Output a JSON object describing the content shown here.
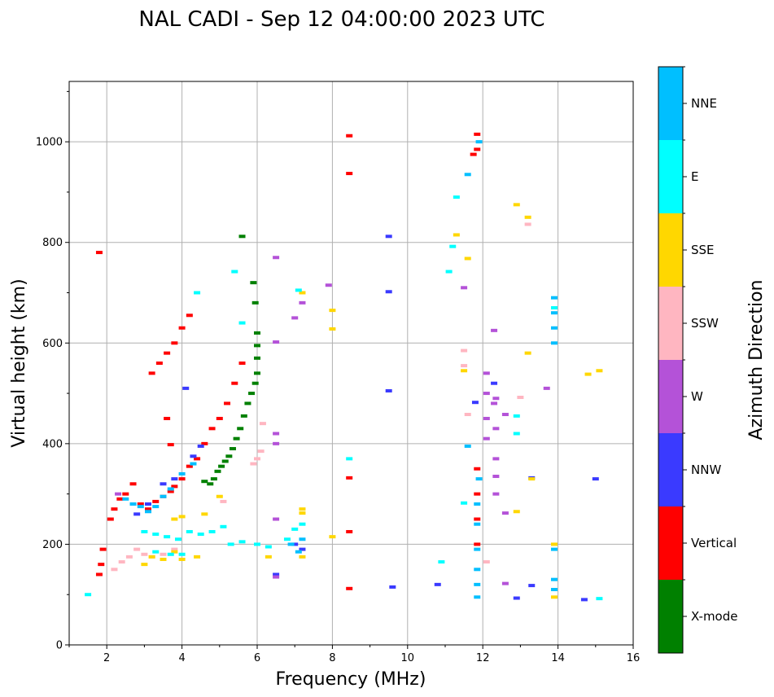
{
  "chart_data": {
    "type": "scatter",
    "title": "NAL CADI - Sep 12 04:00:00 2023 UTC",
    "xlabel": "Frequency (MHz)",
    "ylabel": "Virtual height (km)",
    "xlim": [
      1,
      16
    ],
    "ylim": [
      0,
      1120
    ],
    "xticks": [
      2,
      4,
      6,
      8,
      10,
      12,
      14,
      16
    ],
    "yticks": [
      0,
      200,
      400,
      600,
      800,
      1000
    ],
    "grid": true,
    "colorbar": {
      "label": "Azimuth Direction",
      "categories": [
        {
          "name": "X-mode",
          "color": "#008000"
        },
        {
          "name": "Vertical",
          "color": "#ff0000"
        },
        {
          "name": "NNW",
          "color": "#3a3aff"
        },
        {
          "name": "W",
          "color": "#b452d8"
        },
        {
          "name": "SSW",
          "color": "#ffb6c1"
        },
        {
          "name": "SSE",
          "color": "#ffd700"
        },
        {
          "name": "E",
          "color": "#00ffff"
        },
        {
          "name": "NNE",
          "color": "#00bfff"
        }
      ]
    },
    "series": [
      {
        "name": "X-mode",
        "points": [
          [
            4.85,
            330
          ],
          [
            4.95,
            345
          ],
          [
            5.05,
            355
          ],
          [
            5.15,
            365
          ],
          [
            5.25,
            375
          ],
          [
            5.35,
            390
          ],
          [
            5.45,
            410
          ],
          [
            5.55,
            430
          ],
          [
            5.65,
            455
          ],
          [
            5.75,
            480
          ],
          [
            5.85,
            500
          ],
          [
            5.95,
            520
          ],
          [
            6.0,
            540
          ],
          [
            6.0,
            570
          ],
          [
            6.0,
            595
          ],
          [
            6.0,
            620
          ],
          [
            5.95,
            680
          ],
          [
            5.9,
            720
          ],
          [
            5.6,
            812
          ],
          [
            4.6,
            325
          ],
          [
            4.75,
            320
          ]
        ]
      },
      {
        "name": "Vertical",
        "points": [
          [
            1.8,
            140
          ],
          [
            1.85,
            160
          ],
          [
            1.9,
            190
          ],
          [
            2.1,
            250
          ],
          [
            2.2,
            270
          ],
          [
            2.35,
            290
          ],
          [
            2.5,
            300
          ],
          [
            2.7,
            320
          ],
          [
            2.9,
            280
          ],
          [
            3.1,
            270
          ],
          [
            3.3,
            285
          ],
          [
            3.5,
            295
          ],
          [
            3.7,
            305
          ],
          [
            3.8,
            315
          ],
          [
            4.0,
            330
          ],
          [
            4.2,
            355
          ],
          [
            4.4,
            370
          ],
          [
            4.6,
            400
          ],
          [
            4.8,
            430
          ],
          [
            5.0,
            450
          ],
          [
            5.2,
            480
          ],
          [
            5.4,
            520
          ],
          [
            5.6,
            560
          ],
          [
            3.2,
            540
          ],
          [
            3.4,
            560
          ],
          [
            3.6,
            580
          ],
          [
            3.8,
            600
          ],
          [
            4.0,
            630
          ],
          [
            4.2,
            655
          ],
          [
            3.6,
            450
          ],
          [
            3.7,
            398
          ],
          [
            1.8,
            780
          ],
          [
            8.45,
            1012
          ],
          [
            8.45,
            937
          ],
          [
            8.45,
            332
          ],
          [
            8.45,
            225
          ],
          [
            8.45,
            112
          ],
          [
            11.85,
            1015
          ],
          [
            11.85,
            985
          ],
          [
            11.75,
            975
          ],
          [
            11.85,
            350
          ],
          [
            11.85,
            300
          ],
          [
            11.85,
            250
          ],
          [
            11.85,
            200
          ]
        ]
      },
      {
        "name": "NNW",
        "points": [
          [
            4.1,
            510
          ],
          [
            9.5,
            812
          ],
          [
            9.5,
            702
          ],
          [
            9.5,
            505
          ],
          [
            9.6,
            115
          ],
          [
            10.8,
            120
          ],
          [
            11.8,
            482
          ],
          [
            12.3,
            520
          ],
          [
            13.3,
            332
          ],
          [
            13.3,
            118
          ],
          [
            12.9,
            93
          ],
          [
            14.7,
            90
          ],
          [
            15.0,
            330
          ],
          [
            7.0,
            200
          ],
          [
            7.2,
            190
          ],
          [
            2.8,
            260
          ],
          [
            3.1,
            280
          ],
          [
            3.5,
            320
          ],
          [
            3.8,
            330
          ],
          [
            4.3,
            375
          ],
          [
            4.5,
            395
          ],
          [
            6.5,
            140
          ]
        ]
      },
      {
        "name": "W",
        "points": [
          [
            6.5,
            770
          ],
          [
            6.5,
            602
          ],
          [
            6.5,
            420
          ],
          [
            6.5,
            400
          ],
          [
            7.0,
            650
          ],
          [
            7.2,
            680
          ],
          [
            7.9,
            715
          ],
          [
            11.5,
            710
          ],
          [
            12.1,
            540
          ],
          [
            12.1,
            500
          ],
          [
            12.1,
            450
          ],
          [
            12.1,
            410
          ],
          [
            12.3,
            480
          ],
          [
            12.35,
            490
          ],
          [
            12.35,
            430
          ],
          [
            12.35,
            370
          ],
          [
            12.35,
            335
          ],
          [
            12.35,
            300
          ],
          [
            12.3,
            625
          ],
          [
            12.6,
            458
          ],
          [
            12.6,
            262
          ],
          [
            12.6,
            122
          ],
          [
            13.7,
            510
          ],
          [
            6.5,
            250
          ],
          [
            6.5,
            135
          ],
          [
            2.3,
            300
          ]
        ]
      },
      {
        "name": "SSW",
        "points": [
          [
            2.2,
            150
          ],
          [
            2.4,
            165
          ],
          [
            2.6,
            175
          ],
          [
            2.8,
            190
          ],
          [
            3.0,
            180
          ],
          [
            3.2,
            175
          ],
          [
            3.5,
            180
          ],
          [
            3.8,
            190
          ],
          [
            5.1,
            285
          ],
          [
            5.9,
            360
          ],
          [
            6.0,
            370
          ],
          [
            6.1,
            385
          ],
          [
            6.15,
            440
          ],
          [
            11.5,
            585
          ],
          [
            11.5,
            555
          ],
          [
            11.6,
            458
          ],
          [
            13.0,
            492
          ],
          [
            13.2,
            836
          ],
          [
            12.1,
            165
          ]
        ]
      },
      {
        "name": "SSE",
        "points": [
          [
            3.0,
            160
          ],
          [
            3.2,
            175
          ],
          [
            3.5,
            170
          ],
          [
            3.8,
            185
          ],
          [
            4.0,
            170
          ],
          [
            4.4,
            175
          ],
          [
            3.8,
            250
          ],
          [
            4.0,
            255
          ],
          [
            4.6,
            260
          ],
          [
            5.0,
            295
          ],
          [
            7.2,
            270
          ],
          [
            7.2,
            262
          ],
          [
            6.3,
            175
          ],
          [
            7.2,
            175
          ],
          [
            8.0,
            215
          ],
          [
            8.0,
            628
          ],
          [
            8.0,
            665
          ],
          [
            7.2,
            700
          ],
          [
            11.3,
            815
          ],
          [
            11.6,
            768
          ],
          [
            11.5,
            545
          ],
          [
            12.9,
            875
          ],
          [
            13.2,
            850
          ],
          [
            13.2,
            580
          ],
          [
            12.9,
            265
          ],
          [
            13.3,
            330
          ],
          [
            14.8,
            538
          ],
          [
            15.1,
            545
          ],
          [
            13.9,
            200
          ],
          [
            13.9,
            95
          ]
        ]
      },
      {
        "name": "E",
        "points": [
          [
            3.0,
            225
          ],
          [
            3.3,
            220
          ],
          [
            3.6,
            215
          ],
          [
            3.9,
            210
          ],
          [
            4.2,
            225
          ],
          [
            4.5,
            220
          ],
          [
            4.8,
            225
          ],
          [
            5.1,
            235
          ],
          [
            3.3,
            185
          ],
          [
            3.7,
            180
          ],
          [
            4.0,
            180
          ],
          [
            5.3,
            200
          ],
          [
            5.6,
            205
          ],
          [
            6.0,
            200
          ],
          [
            6.3,
            195
          ],
          [
            6.8,
            210
          ],
          [
            7.0,
            230
          ],
          [
            7.2,
            240
          ],
          [
            4.4,
            700
          ],
          [
            5.4,
            742
          ],
          [
            5.6,
            640
          ],
          [
            7.1,
            705
          ],
          [
            8.45,
            370
          ],
          [
            11.3,
            890
          ],
          [
            11.2,
            792
          ],
          [
            11.1,
            742
          ],
          [
            11.5,
            282
          ],
          [
            12.9,
            455
          ],
          [
            12.9,
            420
          ],
          [
            10.9,
            165
          ],
          [
            15.1,
            92
          ],
          [
            13.9,
            670
          ],
          [
            1.5,
            100
          ]
        ]
      },
      {
        "name": "NNE",
        "points": [
          [
            2.5,
            290
          ],
          [
            2.7,
            280
          ],
          [
            2.9,
            275
          ],
          [
            3.1,
            265
          ],
          [
            3.3,
            275
          ],
          [
            3.5,
            295
          ],
          [
            3.7,
            310
          ],
          [
            4.0,
            340
          ],
          [
            4.3,
            360
          ],
          [
            7.2,
            210
          ],
          [
            6.9,
            200
          ],
          [
            7.1,
            185
          ],
          [
            11.9,
            330
          ],
          [
            11.85,
            280
          ],
          [
            11.85,
            240
          ],
          [
            11.85,
            190
          ],
          [
            11.85,
            150
          ],
          [
            11.85,
            120
          ],
          [
            11.85,
            95
          ],
          [
            11.9,
            1000
          ],
          [
            11.6,
            935
          ],
          [
            11.6,
            395
          ],
          [
            13.9,
            690
          ],
          [
            13.9,
            660
          ],
          [
            13.9,
            630
          ],
          [
            13.9,
            600
          ],
          [
            13.9,
            190
          ],
          [
            13.9,
            130
          ],
          [
            13.9,
            110
          ]
        ]
      }
    ]
  }
}
